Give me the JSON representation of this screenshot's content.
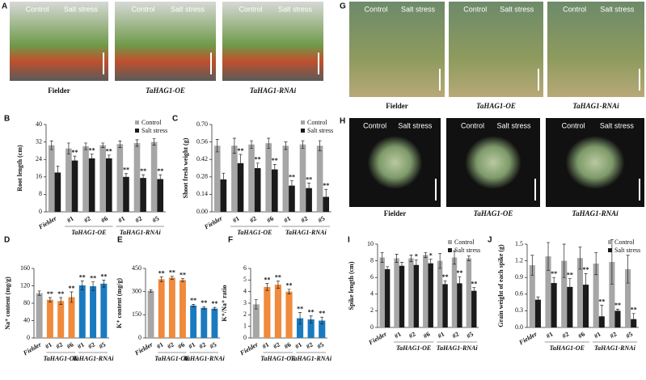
{
  "photos": [
    {
      "label": "A",
      "panels": [
        {
          "caption": "Fielder",
          "texts": [
            "Control",
            "Salt stress"
          ]
        },
        {
          "caption": "TaHAG1-OE",
          "texts": [
            "Control",
            "Salt stress"
          ]
        },
        {
          "caption": "TaHAG1-RNAi",
          "texts": [
            "Control",
            "Salt stress"
          ]
        }
      ]
    },
    {
      "label": "G",
      "panels": [
        {
          "caption": "Fielder",
          "texts": [
            "Control",
            "Salt stress"
          ]
        },
        {
          "caption": "TaHAG1-OE",
          "texts": [
            "Control",
            "Salt stress"
          ]
        },
        {
          "caption": "TaHAG1-RNAi",
          "texts": [
            "Control",
            "Salt stress"
          ]
        }
      ]
    },
    {
      "label": "H",
      "panels": [
        {
          "caption": "Fielder",
          "texts": [
            "Control",
            "Salt stress"
          ]
        },
        {
          "caption": "TaHAG1-OE",
          "texts": [
            "Control",
            "Salt stress"
          ]
        },
        {
          "caption": "TaHAG1-RNAi",
          "texts": [
            "Control",
            "Salt stress"
          ]
        }
      ]
    }
  ],
  "chart_data": [
    {
      "type": "bar",
      "label": "B",
      "ylabel": "Root length (cm)",
      "categories": [
        "Fielder",
        "#1",
        "#2",
        "#6",
        "#1",
        "#2",
        "#5"
      ],
      "groups": [
        "TaHAG1-OE",
        "TaHAG1-RNAi"
      ],
      "ylim": [
        0,
        40
      ],
      "yticks": [
        0,
        8,
        16,
        24,
        32,
        40
      ],
      "legend": "upper right",
      "series": [
        {
          "name": "Control",
          "color": "#a6a6a6",
          "values": [
            30.5,
            29,
            30,
            30.5,
            31,
            31.5,
            32
          ],
          "errors": [
            2,
            2.5,
            1.5,
            1,
            1.5,
            1.5,
            1.5
          ],
          "significance": [
            null,
            null,
            null,
            null,
            null,
            null,
            null
          ]
        },
        {
          "name": "Salt stress",
          "color": "#1a1a1a",
          "values": [
            18,
            23.5,
            24.5,
            24.5,
            16,
            15.5,
            15
          ],
          "errors": [
            3,
            2,
            2,
            1.5,
            1.5,
            1.5,
            2
          ],
          "significance": [
            null,
            "**",
            "**",
            "**",
            "**",
            "**",
            "**"
          ]
        }
      ]
    },
    {
      "type": "bar",
      "label": "C",
      "ylabel": "Shoot fresh weight (g)",
      "categories": [
        "Fielder",
        "#1",
        "#2",
        "#6",
        "#1",
        "#2",
        "#5"
      ],
      "groups": [
        "TaHAG1-OE",
        "TaHAG1-RNAi"
      ],
      "ylim": [
        0,
        0.7
      ],
      "yticks": [
        {
          "value": 0,
          "label": "0.00"
        },
        0.14,
        0.28,
        0.42,
        0.56,
        {
          "value": 0.7,
          "label": "0.70"
        }
      ],
      "legend": "upper right",
      "series": [
        {
          "name": "Control",
          "color": "#a6a6a6",
          "values": [
            0.53,
            0.53,
            0.54,
            0.55,
            0.53,
            0.54,
            0.53
          ],
          "errors": [
            0.05,
            0.06,
            0.03,
            0.04,
            0.03,
            0.03,
            0.04
          ],
          "significance": [
            null,
            null,
            null,
            null,
            null,
            null,
            null
          ]
        },
        {
          "name": "Salt stress",
          "color": "#1a1a1a",
          "values": [
            0.26,
            0.39,
            0.35,
            0.34,
            0.21,
            0.19,
            0.12
          ],
          "errors": [
            0.05,
            0.07,
            0.04,
            0.04,
            0.04,
            0.04,
            0.06
          ],
          "significance": [
            null,
            "**",
            "**",
            "**",
            "**",
            "**",
            "**"
          ]
        }
      ]
    },
    {
      "type": "bar",
      "label": "D",
      "ylabel": "Na⁺ content (mg/g)",
      "categories": [
        "Fielder",
        "#1",
        "#2",
        "#6",
        "#1",
        "#2",
        "#5"
      ],
      "groups": [
        "TaHAG1-OE",
        "TaHAG1-RNAi"
      ],
      "ylim": [
        0,
        160
      ],
      "yticks": [
        0,
        40,
        80,
        120,
        160
      ],
      "colors": [
        "#a6a6a6",
        "#f08a3c",
        "#f08a3c",
        "#f08a3c",
        "#1a7ac0",
        "#1a7ac0",
        "#1a7ac0"
      ],
      "values": [
        103,
        88,
        85,
        94,
        121,
        119,
        125
      ],
      "errors": [
        5,
        5,
        8,
        12,
        10,
        10,
        8
      ],
      "significance": [
        null,
        "**",
        "**",
        "**",
        "**",
        "**",
        "**"
      ]
    },
    {
      "type": "bar",
      "label": "E",
      "ylabel": "K⁺ content (mg/g)",
      "categories": [
        "Fielder",
        "#1",
        "#2",
        "#6",
        "#1",
        "#2",
        "#5"
      ],
      "groups": [
        "TaHAG1-OE",
        "TaHAG1-RNAi"
      ],
      "ylim": [
        0,
        450
      ],
      "yticks": [
        0,
        150,
        300,
        450
      ],
      "colors": [
        "#a6a6a6",
        "#f08a3c",
        "#f08a3c",
        "#f08a3c",
        "#1a7ac0",
        "#1a7ac0",
        "#1a7ac0"
      ],
      "values": [
        305,
        380,
        390,
        375,
        210,
        195,
        190
      ],
      "errors": [
        8,
        15,
        10,
        10,
        8,
        8,
        8
      ],
      "significance": [
        null,
        "**",
        "**",
        "**",
        "**",
        "**",
        "**"
      ]
    },
    {
      "type": "bar",
      "label": "F",
      "ylabel": "K⁺/Na⁺ ratio",
      "categories": [
        "Fielder",
        "#1",
        "#2",
        "#6",
        "#1",
        "#2",
        "#5"
      ],
      "groups": [
        "TaHAG1-OE",
        "TaHAG1-RNAi"
      ],
      "ylim": [
        0,
        6
      ],
      "yticks": [
        0,
        1,
        2,
        3,
        4,
        5,
        6
      ],
      "colors": [
        "#a6a6a6",
        "#f08a3c",
        "#f08a3c",
        "#f08a3c",
        "#1a7ac0",
        "#1a7ac0",
        "#1a7ac0"
      ],
      "values": [
        2.9,
        4.4,
        4.6,
        4.0,
        1.7,
        1.6,
        1.5
      ],
      "errors": [
        0.4,
        0.3,
        0.3,
        0.2,
        0.5,
        0.3,
        0.3
      ],
      "significance": [
        null,
        "**",
        "**",
        "**",
        "**",
        "**",
        "**"
      ]
    },
    {
      "type": "bar",
      "label": "I",
      "ylabel": "Spike length (cm)",
      "categories": [
        "Fielder",
        "#1",
        "#2",
        "#6",
        "#1",
        "#2",
        "#5"
      ],
      "groups": [
        "TaHAG1-OE",
        "TaHAG1-RNAi"
      ],
      "ylim": [
        0,
        10
      ],
      "yticks": [
        0,
        2,
        4,
        6,
        8,
        10
      ],
      "legend": "upper right",
      "series": [
        {
          "name": "Control",
          "color": "#a6a6a6",
          "values": [
            8.4,
            8.3,
            8.3,
            8.7,
            8.0,
            8.4,
            8.3
          ],
          "errors": [
            0.6,
            0.5,
            0.4,
            0.3,
            0.9,
            0.8,
            0.3
          ],
          "significance": [
            null,
            null,
            null,
            null,
            null,
            null,
            null
          ]
        },
        {
          "name": "Salt stress",
          "color": "#1a1a1a",
          "values": [
            7.0,
            7.4,
            7.5,
            7.7,
            5.2,
            5.3,
            4.4
          ],
          "errors": [
            0.3,
            0.4,
            0.6,
            0.5,
            0.4,
            0.8,
            0.4
          ],
          "significance": [
            null,
            null,
            "*",
            "*",
            "**",
            "**",
            "**"
          ]
        }
      ]
    },
    {
      "type": "bar",
      "label": "J",
      "ylabel": "Grain weight of each spike (g)",
      "categories": [
        "Fielder",
        "#1",
        "#2",
        "#6",
        "#1",
        "#2",
        "#5"
      ],
      "groups": [
        "TaHAG1-OE",
        "TaHAG1-RNAi"
      ],
      "ylim": [
        0,
        1.5
      ],
      "yticks": [
        {
          "value": 0,
          "label": "0.0"
        },
        0.3,
        0.6,
        0.9,
        1.2,
        1.5
      ],
      "legend": "upper right",
      "series": [
        {
          "name": "Control",
          "color": "#a6a6a6",
          "values": [
            1.12,
            1.28,
            1.2,
            1.25,
            1.15,
            1.18,
            1.05
          ],
          "errors": [
            0.18,
            0.25,
            0.3,
            0.2,
            0.2,
            0.4,
            0.25
          ],
          "significance": [
            null,
            null,
            null,
            null,
            null,
            null,
            null
          ]
        },
        {
          "name": "Salt stress",
          "color": "#1a1a1a",
          "values": [
            0.5,
            0.8,
            0.73,
            0.77,
            0.2,
            0.3,
            0.15
          ],
          "errors": [
            0.05,
            0.1,
            0.15,
            0.2,
            0.2,
            0.03,
            0.1
          ],
          "significance": [
            null,
            "**",
            "**",
            "**",
            "**",
            "**",
            "**"
          ]
        }
      ]
    }
  ]
}
